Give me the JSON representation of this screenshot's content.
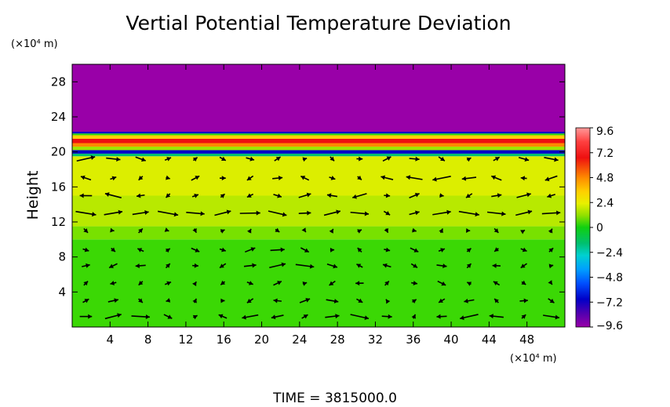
{
  "chart_data": {
    "type": "heatmap",
    "title": "Vertial Potential Temperature Deviation",
    "ylabel": "Height",
    "x_unit_label": "(×10⁴ m)",
    "y_unit_label": "(×10⁴ m)",
    "footer": "TIME = 3815000.0",
    "xlim": [
      0,
      52
    ],
    "ylim": [
      0,
      30
    ],
    "x_ticks": [
      4,
      8,
      12,
      16,
      20,
      24,
      28,
      32,
      36,
      40,
      44,
      48
    ],
    "y_ticks": [
      4,
      8,
      12,
      16,
      20,
      24,
      28
    ],
    "colorbar": {
      "range": [
        -9.6,
        9.6
      ],
      "ticks": [
        9.6,
        7.2,
        4.8,
        2.4,
        0,
        -2.4,
        -4.8,
        -7.2,
        -9.6
      ],
      "tick_labels": [
        "9.6",
        "7.2",
        "4.8",
        "2.4",
        "0",
        "−2.4",
        "−4.8",
        "−7.2",
        "−9.6"
      ]
    },
    "bands": [
      {
        "y0": 0,
        "y1": 10,
        "value": 0.8
      },
      {
        "y0": 10,
        "y1": 11.5,
        "value": 1.8
      },
      {
        "y0": 11.5,
        "y1": 15,
        "value": 2.8
      },
      {
        "y0": 15,
        "y1": 19.5,
        "value": 3.4
      },
      {
        "y0": 19.5,
        "y1": 19.8,
        "value": -2.4
      },
      {
        "y0": 19.8,
        "y1": 20.2,
        "value": -7.2
      },
      {
        "y0": 20.2,
        "y1": 20.6,
        "value": 2.4
      },
      {
        "y0": 20.6,
        "y1": 21.0,
        "value": 6.0
      },
      {
        "y0": 21.0,
        "y1": 21.5,
        "value": 8.4
      },
      {
        "y0": 21.5,
        "y1": 21.9,
        "value": 4.8
      },
      {
        "y0": 21.9,
        "y1": 22.1,
        "value": 0.5
      },
      {
        "y0": 22.1,
        "y1": 22.3,
        "value": -7.2
      },
      {
        "y0": 22.3,
        "y1": 30,
        "value": -9.6
      }
    ],
    "vector_rows": [
      {
        "y": 1.2,
        "u": [
          0.6,
          0.8,
          0.9,
          0.4,
          0.2,
          -0.4,
          -0.8,
          -0.6,
          0.3,
          0.7,
          0.9,
          0.5,
          0.1,
          -0.5,
          -0.9,
          -0.7,
          0.2,
          0.8
        ]
      },
      {
        "y": 3.0,
        "u": [
          0.3,
          0.5,
          0.2,
          -0.2,
          0.1,
          0.2,
          -0.3,
          -0.4,
          0.5,
          0.6,
          0.3,
          -0.1,
          0.2,
          -0.3,
          -0.5,
          -0.2,
          0.4,
          0.3
        ]
      },
      {
        "y": 5.0,
        "u": [
          0.2,
          -0.3,
          -0.2,
          0.3,
          0.1,
          -0.2,
          0.3,
          0.4,
          0.2,
          -0.3,
          -0.4,
          0.2,
          0.3,
          0.4,
          -0.2,
          -0.3,
          0.2,
          0.1
        ]
      },
      {
        "y": 7.0,
        "u": [
          0.4,
          -0.4,
          -0.5,
          0.2,
          0.3,
          -0.3,
          0.6,
          0.8,
          0.9,
          0.5,
          -0.3,
          -0.4,
          0.3,
          0.5,
          0.2,
          -0.4,
          -0.3,
          0.2
        ]
      },
      {
        "y": 8.8,
        "u": [
          0.3,
          0.2,
          -0.3,
          0.2,
          0.4,
          0.3,
          0.5,
          0.7,
          0.4,
          0.2,
          -0.2,
          0.3,
          0.4,
          0.3,
          0.2,
          -0.2,
          0.3,
          0.2
        ]
      },
      {
        "y": 11.0,
        "u": [
          0.2,
          0.1,
          0.2,
          0.1,
          0.1,
          0.2,
          0.1,
          0.2,
          0.1,
          0.1,
          0.2,
          0.1,
          0.2,
          0.1,
          0.1,
          0.2,
          0.1,
          0.1
        ]
      },
      {
        "y": 13.0,
        "u": [
          1.0,
          0.9,
          0.8,
          1.0,
          0.9,
          0.8,
          1.0,
          0.9,
          0.6,
          0.8,
          0.9,
          0.3,
          0.5,
          0.9,
          1.0,
          0.9,
          0.8,
          0.9
        ]
      },
      {
        "y": 15.0,
        "u": [
          -0.6,
          -0.8,
          -0.4,
          -0.2,
          0.3,
          0.2,
          -0.3,
          0.4,
          0.6,
          -0.5,
          -0.7,
          0.3,
          0.5,
          0.2,
          -0.3,
          0.5,
          0.7,
          -0.4
        ]
      },
      {
        "y": 17.0,
        "u": [
          -0.5,
          0.3,
          -0.2,
          0.2,
          0.4,
          0.3,
          -0.3,
          0.5,
          -0.4,
          0.3,
          0.2,
          -0.6,
          -0.8,
          -0.9,
          -0.7,
          -0.5,
          -0.3,
          -0.6
        ]
      },
      {
        "y": 19.2,
        "u": [
          0.9,
          0.7,
          0.5,
          0.3,
          0.2,
          0.3,
          0.4,
          0.3,
          0.2,
          0.2,
          0.3,
          0.4,
          0.5,
          0.3,
          0.2,
          0.3,
          0.5,
          0.7
        ]
      }
    ]
  }
}
